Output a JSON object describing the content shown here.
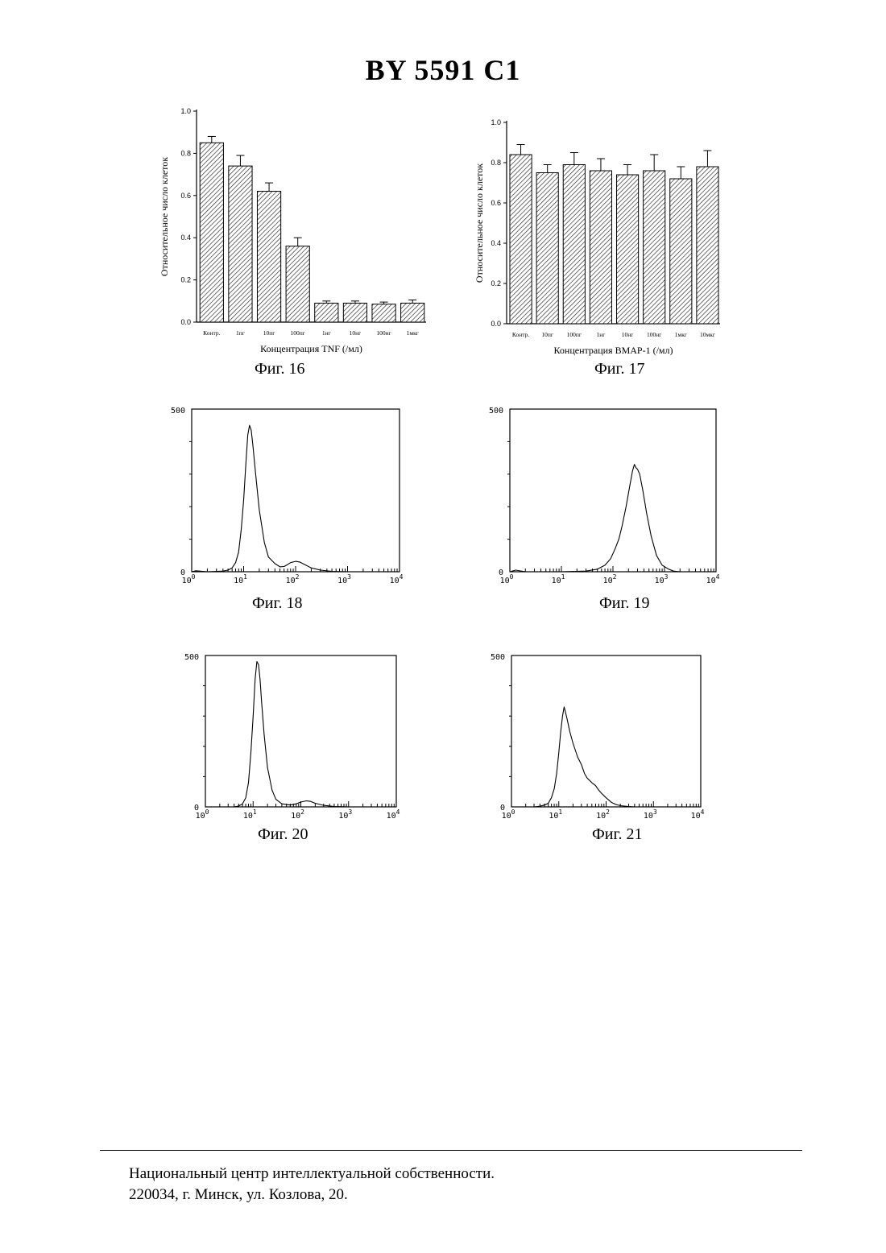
{
  "document": {
    "title": "BY 5591 C1"
  },
  "figures": [
    {
      "caption": "Фиг. 16"
    },
    {
      "caption": "Фиг. 17"
    },
    {
      "caption": "Фиг. 18"
    },
    {
      "caption": "Фиг. 19"
    },
    {
      "caption": "Фиг. 20"
    },
    {
      "caption": "Фиг. 21"
    }
  ],
  "footer": {
    "line1": "Национальный центр интеллектуальной собственности.",
    "line2": "220034, г. Минск, ул. Козлова, 20."
  },
  "chart_data": [
    {
      "type": "bar",
      "figure": "Фиг. 16",
      "categories": [
        "Контр.",
        "1пг",
        "10пг",
        "100пг",
        "1нг",
        "10нг",
        "100нг",
        "1мкг"
      ],
      "values": [
        0.85,
        0.74,
        0.62,
        0.36,
        0.09,
        0.09,
        0.085,
        0.09
      ],
      "errors": [
        0.03,
        0.05,
        0.04,
        0.04,
        0.01,
        0.01,
        0.01,
        0.015
      ],
      "xlabel": "Концентрация TNF (/мл)",
      "ylabel": "Относительное число клеток",
      "ylim": [
        0,
        1.0
      ],
      "yticks": [
        "0.0",
        "0.2",
        "0.4",
        "0.6",
        "0.8",
        "1.0"
      ],
      "bar_fill": "diagonal-hatch"
    },
    {
      "type": "bar",
      "figure": "Фиг. 17",
      "categories": [
        "Контр.",
        "10пг",
        "100пг",
        "1нг",
        "10нг",
        "100нг",
        "1мкг",
        "10мкг"
      ],
      "values": [
        0.84,
        0.75,
        0.79,
        0.76,
        0.74,
        0.76,
        0.72,
        0.78
      ],
      "errors": [
        0.05,
        0.04,
        0.06,
        0.06,
        0.05,
        0.08,
        0.06,
        0.08
      ],
      "xlabel": "Концентрация BMAP-1 (/мл)",
      "ylabel": "Относительное число клеток",
      "ylim": [
        0,
        1.0
      ],
      "yticks": [
        "0.0",
        "0.2",
        "0.4",
        "0.6",
        "0.8",
        "1.0"
      ],
      "bar_fill": "diagonal-hatch"
    },
    {
      "type": "line",
      "figure": "Фиг. 18",
      "xscale": "log",
      "xlim": [
        1,
        10000
      ],
      "ylim": [
        0,
        500
      ],
      "yticks": [
        "0",
        "500"
      ],
      "xticks": [
        "10^0",
        "10^1",
        "10^2",
        "10^3",
        "10^4"
      ],
      "series": [
        {
          "points": [
            [
              1,
              0
            ],
            [
              1.2,
              3
            ],
            [
              2,
              0
            ],
            [
              3,
              1
            ],
            [
              4,
              2
            ],
            [
              5,
              5
            ],
            [
              6,
              12
            ],
            [
              7,
              28
            ],
            [
              8,
              60
            ],
            [
              9,
              130
            ],
            [
              10,
              220
            ],
            [
              11,
              330
            ],
            [
              12,
              420
            ],
            [
              13,
              450
            ],
            [
              14,
              435
            ],
            [
              15,
              390
            ],
            [
              17,
              300
            ],
            [
              20,
              190
            ],
            [
              25,
              90
            ],
            [
              30,
              45
            ],
            [
              40,
              25
            ],
            [
              50,
              15
            ],
            [
              60,
              16
            ],
            [
              70,
              22
            ],
            [
              80,
              28
            ],
            [
              100,
              32
            ],
            [
              120,
              30
            ],
            [
              150,
              22
            ],
            [
              200,
              12
            ],
            [
              300,
              5
            ],
            [
              500,
              1
            ],
            [
              1000,
              0
            ]
          ]
        }
      ]
    },
    {
      "type": "line",
      "figure": "Фиг. 19",
      "xscale": "log",
      "xlim": [
        1,
        10000
      ],
      "ylim": [
        0,
        500
      ],
      "yticks": [
        "0",
        "500"
      ],
      "xticks": [
        "10^0",
        "10^1",
        "10^2",
        "10^3",
        "10^4"
      ],
      "series": [
        {
          "points": [
            [
              1,
              0
            ],
            [
              1.3,
              5
            ],
            [
              2,
              0
            ],
            [
              10,
              0
            ],
            [
              30,
              2
            ],
            [
              50,
              8
            ],
            [
              70,
              20
            ],
            [
              90,
              40
            ],
            [
              110,
              70
            ],
            [
              130,
              100
            ],
            [
              150,
              140
            ],
            [
              180,
              200
            ],
            [
              210,
              260
            ],
            [
              240,
              310
            ],
            [
              260,
              330
            ],
            [
              280,
              320
            ],
            [
              300,
              315
            ],
            [
              330,
              300
            ],
            [
              380,
              250
            ],
            [
              450,
              180
            ],
            [
              550,
              110
            ],
            [
              700,
              50
            ],
            [
              900,
              20
            ],
            [
              1200,
              8
            ],
            [
              1500,
              2
            ],
            [
              2000,
              0
            ]
          ]
        }
      ]
    },
    {
      "type": "line",
      "figure": "Фиг. 20",
      "xscale": "log",
      "xlim": [
        1,
        10000
      ],
      "ylim": [
        0,
        500
      ],
      "yticks": [
        "0",
        "500"
      ],
      "xticks": [
        "10^0",
        "10^1",
        "10^2",
        "10^3",
        "10^4"
      ],
      "series": [
        {
          "points": [
            [
              1,
              0
            ],
            [
              4,
              0
            ],
            [
              5,
              3
            ],
            [
              6,
              10
            ],
            [
              7,
              30
            ],
            [
              8,
              80
            ],
            [
              9,
              180
            ],
            [
              10,
              300
            ],
            [
              11,
              420
            ],
            [
              12,
              480
            ],
            [
              13,
              470
            ],
            [
              14,
              420
            ],
            [
              15,
              350
            ],
            [
              17,
              240
            ],
            [
              20,
              130
            ],
            [
              25,
              55
            ],
            [
              30,
              25
            ],
            [
              40,
              10
            ],
            [
              60,
              6
            ],
            [
              80,
              10
            ],
            [
              100,
              16
            ],
            [
              130,
              20
            ],
            [
              160,
              18
            ],
            [
              200,
              12
            ],
            [
              300,
              5
            ],
            [
              500,
              1
            ],
            [
              1000,
              0
            ]
          ]
        }
      ]
    },
    {
      "type": "line",
      "figure": "Фиг. 21",
      "xscale": "log",
      "xlim": [
        1,
        10000
      ],
      "ylim": [
        0,
        500
      ],
      "yticks": [
        "0",
        "500"
      ],
      "xticks": [
        "10^0",
        "10^1",
        "10^2",
        "10^3",
        "10^4"
      ],
      "series": [
        {
          "points": [
            [
              1,
              0
            ],
            [
              3,
              0
            ],
            [
              4,
              2
            ],
            [
              5,
              6
            ],
            [
              6,
              12
            ],
            [
              7,
              30
            ],
            [
              8,
              60
            ],
            [
              9,
              110
            ],
            [
              10,
              180
            ],
            [
              11,
              250
            ],
            [
              12,
              300
            ],
            [
              13,
              330
            ],
            [
              14,
              310
            ],
            [
              15,
              290
            ],
            [
              17,
              250
            ],
            [
              20,
              210
            ],
            [
              25,
              165
            ],
            [
              30,
              140
            ],
            [
              35,
              110
            ],
            [
              40,
              95
            ],
            [
              50,
              80
            ],
            [
              60,
              70
            ],
            [
              70,
              55
            ],
            [
              80,
              45
            ],
            [
              100,
              30
            ],
            [
              130,
              15
            ],
            [
              160,
              8
            ],
            [
              200,
              4
            ],
            [
              300,
              1
            ],
            [
              400,
              0
            ]
          ]
        }
      ]
    }
  ]
}
